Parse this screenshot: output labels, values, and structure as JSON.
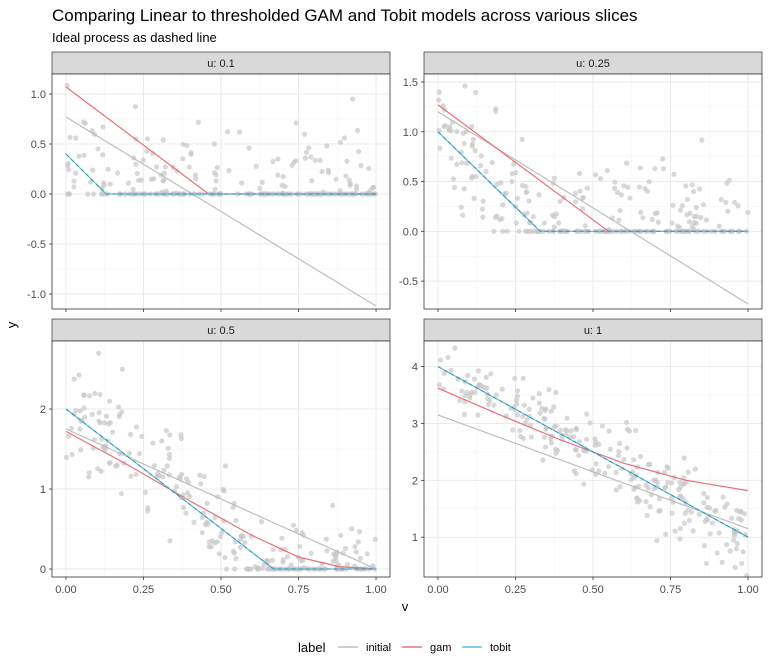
{
  "chart_data": {
    "type": "line",
    "title": "Comparing Linear to thresholded GAM and Tobit models across various slices",
    "subtitle": "Ideal process as dashed line",
    "xlabel": "v",
    "ylabel": "y",
    "legend": {
      "title": "label",
      "position": "bottom",
      "entries": [
        "initial",
        "gam",
        "tobit"
      ]
    },
    "colors": {
      "initial": "#bdbdbd",
      "gam": "#e8717a",
      "tobit": "#5bc0de",
      "ideal": "#3b8fb8",
      "points": "#c8c8c8",
      "strip_bg": "#d9d9d9",
      "grid": "#ebebeb"
    },
    "grid": true,
    "xlim": [
      0,
      1
    ],
    "xticks": [
      0.0,
      0.25,
      0.5,
      0.75,
      1.0
    ],
    "xtick_labels": [
      "0.00",
      "0.25",
      "0.50",
      "0.75",
      "1.00"
    ],
    "panels": [
      {
        "label": "u: 0.1",
        "u": 0.1,
        "ylim": [
          -1.15,
          1.2
        ],
        "yticks": [
          -1.0,
          -0.5,
          0.0,
          0.5,
          1.0
        ],
        "ytick_labels": [
          "-1.0",
          "-0.5",
          "0.0",
          "0.5",
          "1.0"
        ],
        "series": [
          {
            "name": "initial",
            "x": [
              0.0,
              1.0
            ],
            "y": [
              0.77,
              -1.12
            ]
          },
          {
            "name": "gam",
            "x": [
              0.0,
              0.46,
              1.0
            ],
            "y": [
              1.07,
              0.0,
              0.0
            ]
          },
          {
            "name": "tobit",
            "x": [
              0.0,
              0.13,
              1.0
            ],
            "y": [
              0.4,
              0.0,
              0.0
            ]
          }
        ],
        "ideal": {
          "x": [
            0.0,
            0.13,
            1.0
          ],
          "y": [
            0.4,
            0.0,
            0.0
          ]
        }
      },
      {
        "label": "u: 0.25",
        "u": 0.25,
        "ylim": [
          -0.78,
          1.58
        ],
        "yticks": [
          -0.5,
          0.0,
          0.5,
          1.0,
          1.5
        ],
        "ytick_labels": [
          "-0.5",
          "0.0",
          "0.5",
          "1.0",
          "1.5"
        ],
        "series": [
          {
            "name": "initial",
            "x": [
              0.0,
              1.0
            ],
            "y": [
              1.2,
              -0.73
            ]
          },
          {
            "name": "gam",
            "x": [
              0.0,
              0.55,
              1.0
            ],
            "y": [
              1.27,
              0.0,
              0.0
            ]
          },
          {
            "name": "tobit",
            "x": [
              0.0,
              0.33,
              1.0
            ],
            "y": [
              1.0,
              0.0,
              0.0
            ]
          }
        ],
        "ideal": {
          "x": [
            0.0,
            0.33,
            1.0
          ],
          "y": [
            1.0,
            0.0,
            0.0
          ]
        }
      },
      {
        "label": "u: 0.5",
        "u": 0.5,
        "ylim": [
          -0.1,
          2.85
        ],
        "yticks": [
          0,
          1,
          2
        ],
        "ytick_labels": [
          "0",
          "1",
          "2"
        ],
        "series": [
          {
            "name": "initial",
            "x": [
              0.0,
              1.0
            ],
            "y": [
              1.75,
              0.0
            ]
          },
          {
            "name": "gam",
            "x": [
              0.0,
              0.2,
              0.4,
              0.6,
              0.75,
              0.88,
              1.0
            ],
            "y": [
              1.72,
              1.3,
              0.85,
              0.42,
              0.15,
              0.03,
              0.0
            ]
          },
          {
            "name": "tobit",
            "x": [
              0.0,
              0.67,
              1.0
            ],
            "y": [
              2.0,
              0.0,
              0.0
            ]
          }
        ],
        "ideal": {
          "x": [
            0.0,
            0.67,
            1.0
          ],
          "y": [
            2.0,
            0.0,
            0.0
          ]
        }
      },
      {
        "label": "u: 1",
        "u": 1,
        "ylim": [
          0.3,
          4.45
        ],
        "yticks": [
          1,
          2,
          3,
          4
        ],
        "ytick_labels": [
          "1",
          "2",
          "3",
          "4"
        ],
        "series": [
          {
            "name": "initial",
            "x": [
              0.0,
              1.0
            ],
            "y": [
              3.15,
              1.15
            ]
          },
          {
            "name": "gam",
            "x": [
              0.0,
              0.2,
              0.4,
              0.6,
              0.8,
              1.0
            ],
            "y": [
              3.62,
              3.15,
              2.7,
              2.3,
              2.0,
              1.82
            ]
          },
          {
            "name": "tobit",
            "x": [
              0.0,
              1.0
            ],
            "y": [
              4.0,
              1.0
            ]
          }
        ],
        "ideal": {
          "x": [
            0.0,
            1.0
          ],
          "y": [
            4.0,
            1.0
          ]
        }
      }
    ]
  }
}
